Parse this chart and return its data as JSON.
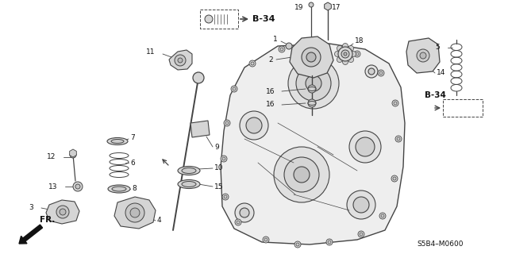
{
  "bg_color": "#ffffff",
  "diagram_code": "S5B4–M0600",
  "ref_label": "B-34",
  "fr_label": "FR.",
  "line_color": "#444444",
  "text_color": "#111111",
  "figsize": [
    6.4,
    3.2
  ],
  "dpi": 100
}
